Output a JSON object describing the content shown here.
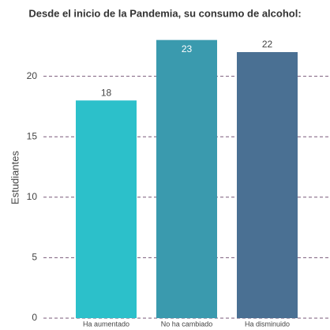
{
  "chart_data": {
    "type": "bar",
    "title": "Desde el inicio de la Pandemia, su consumo de alcohol:",
    "y_label": "Estudiantes",
    "categories": [
      "Ha aumentado",
      "No ha cambiado",
      "Ha disminuido"
    ],
    "values": [
      18,
      23,
      22
    ],
    "colors": [
      "#2cc0ca",
      "#3a9aae",
      "#4a7093"
    ],
    "ylim": [
      0,
      23.5
    ],
    "yticks": [
      0,
      5,
      10,
      15,
      20
    ],
    "grid": true
  }
}
